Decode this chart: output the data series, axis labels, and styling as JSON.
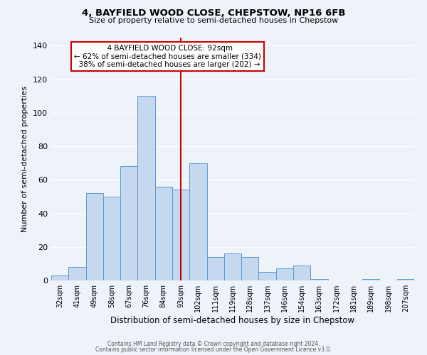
{
  "title": "4, BAYFIELD WOOD CLOSE, CHEPSTOW, NP16 6FB",
  "subtitle": "Size of property relative to semi-detached houses in Chepstow",
  "xlabel": "Distribution of semi-detached houses by size in Chepstow",
  "ylabel": "Number of semi-detached properties",
  "bin_labels": [
    "32sqm",
    "41sqm",
    "49sqm",
    "58sqm",
    "67sqm",
    "76sqm",
    "84sqm",
    "93sqm",
    "102sqm",
    "111sqm",
    "119sqm",
    "128sqm",
    "137sqm",
    "146sqm",
    "154sqm",
    "163sqm",
    "172sqm",
    "181sqm",
    "189sqm",
    "198sqm",
    "207sqm"
  ],
  "bar_heights": [
    3,
    8,
    52,
    50,
    68,
    110,
    56,
    54,
    70,
    14,
    16,
    14,
    5,
    7,
    9,
    1,
    0,
    0,
    1,
    0,
    1
  ],
  "bar_color": "#c5d8f0",
  "bar_edge_color": "#5b9bd5",
  "vline_x_index": 7,
  "marker_label": "4 BAYFIELD WOOD CLOSE: 92sqm",
  "smaller_pct": "62%",
  "smaller_count": "334",
  "larger_pct": "38%",
  "larger_count": "202",
  "vline_color": "#cc0000",
  "annotation_box_edge": "#cc0000",
  "ylim": [
    0,
    145
  ],
  "yticks": [
    0,
    20,
    40,
    60,
    80,
    100,
    120,
    140
  ],
  "footer_line1": "Contains HM Land Registry data © Crown copyright and database right 2024.",
  "footer_line2": "Contains public sector information licensed under the Open Government Licence v3.0.",
  "background_color": "#eef3fa",
  "plot_bg_color": "#eef3fa"
}
